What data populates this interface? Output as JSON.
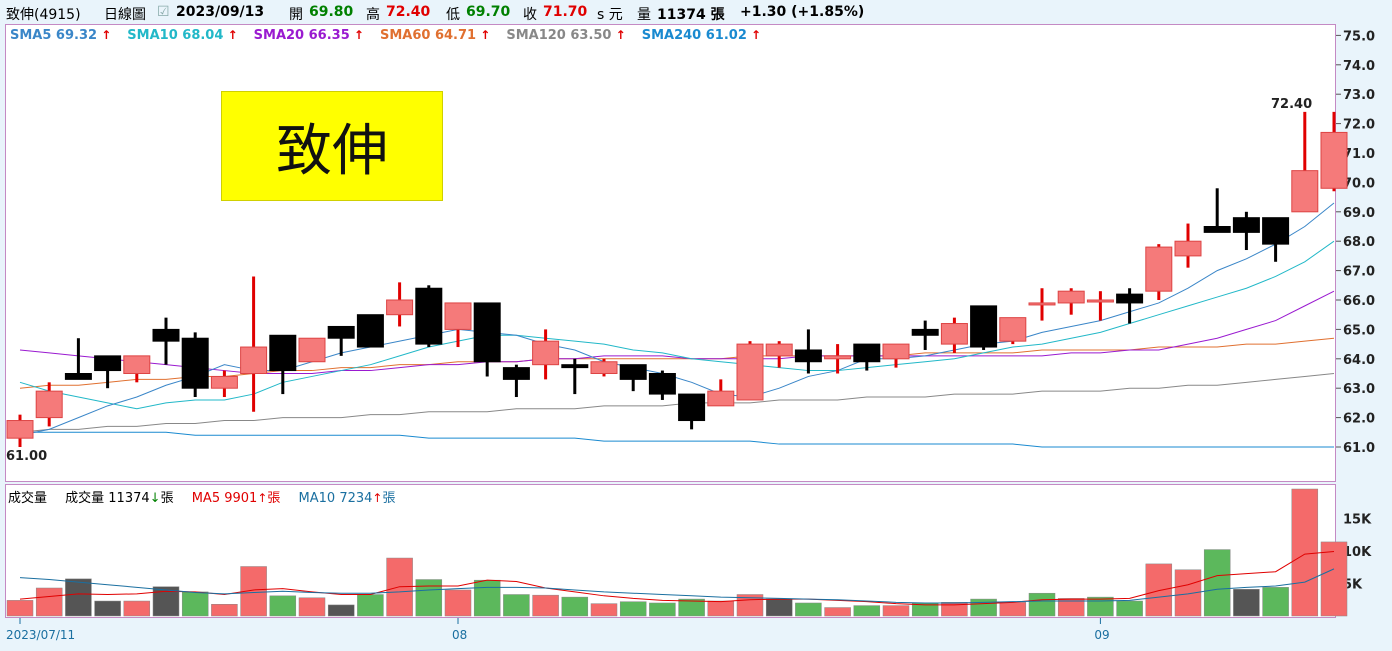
{
  "header": {
    "stock": "致伸(4915)",
    "period": "日線圖",
    "date": "2023/09/13",
    "open_label": "開",
    "open": "69.80",
    "high_label": "高",
    "high": "72.40",
    "low_label": "低",
    "low": "69.70",
    "close_label": "收",
    "close": "71.70",
    "unit_label": "s 元",
    "volume_label": "量",
    "volume": "11374 張",
    "change": "+1.30 (+1.85%)"
  },
  "stock_name_box": "致伸",
  "sma_legend": [
    {
      "label": "SMA5 69.32",
      "color": "#3a86c8"
    },
    {
      "label": "SMA10 68.04",
      "color": "#22b8c8"
    },
    {
      "label": "SMA20 66.35",
      "color": "#9a1ad0"
    },
    {
      "label": "SMA60 64.71",
      "color": "#e07030"
    },
    {
      "label": "SMA120 63.50",
      "color": "#888888"
    },
    {
      "label": "SMA240 61.02",
      "color": "#1a8ad0"
    }
  ],
  "volume_legend": {
    "title": "成交量",
    "vol": "成交量 11374",
    "vol_unit": "張",
    "ma5": "MA5 9901",
    "ma5_unit": "張",
    "ma10": "MA10 7234",
    "ma10_unit": "張"
  },
  "annotations": {
    "high": "72.40",
    "low": "61.00"
  },
  "colors": {
    "up": "#f57a7a",
    "down": "#000000",
    "vol_up": "#f46a6a",
    "vol_down": "#5cb85c",
    "vol_neutral": "#555555",
    "wick_up": "#e00000"
  },
  "chart_data": {
    "type": "candlestick",
    "ylim": [
      60.5,
      75.0
    ],
    "yticks": [
      "61.0",
      "62.0",
      "63.0",
      "64.0",
      "65.0",
      "66.0",
      "67.0",
      "68.0",
      "69.0",
      "70.0",
      "71.0",
      "72.0",
      "73.0",
      "74.0",
      "75.0"
    ],
    "vol_ylim": [
      0,
      19500
    ],
    "vol_ticks": [
      "5K",
      "10K",
      "15K"
    ],
    "date_labels": [
      {
        "label": "2023/07/11",
        "index": 0
      },
      {
        "label": "08",
        "index": 15
      },
      {
        "label": "09",
        "index": 37
      }
    ],
    "candles": [
      [
        61.3,
        61.9,
        61.0,
        62.1,
        2400,
        "u"
      ],
      [
        62.0,
        62.9,
        61.7,
        63.2,
        4300,
        "u"
      ],
      [
        63.5,
        63.3,
        63.3,
        64.7,
        5700,
        "d"
      ],
      [
        64.1,
        63.6,
        63.0,
        64.1,
        2300,
        "d"
      ],
      [
        63.5,
        64.1,
        63.2,
        64.1,
        2300,
        "u"
      ],
      [
        65.0,
        64.6,
        63.8,
        65.4,
        4500,
        "d"
      ],
      [
        64.7,
        63.0,
        62.7,
        64.9,
        3700,
        "g"
      ],
      [
        63.0,
        63.4,
        62.7,
        63.6,
        1800,
        "u"
      ],
      [
        63.5,
        64.4,
        62.2,
        66.8,
        7600,
        "u"
      ],
      [
        64.8,
        63.6,
        62.8,
        64.8,
        3100,
        "g"
      ],
      [
        63.9,
        64.7,
        63.9,
        64.7,
        2800,
        "u"
      ],
      [
        65.1,
        64.7,
        64.1,
        65.1,
        1700,
        "n"
      ],
      [
        65.5,
        64.4,
        64.4,
        65.5,
        3300,
        "g"
      ],
      [
        65.5,
        66.0,
        65.1,
        66.6,
        8900,
        "u"
      ],
      [
        66.4,
        64.5,
        64.4,
        66.5,
        5600,
        "g"
      ],
      [
        65.0,
        65.9,
        64.4,
        65.9,
        4000,
        "u"
      ],
      [
        65.9,
        63.9,
        63.4,
        65.9,
        5500,
        "g"
      ],
      [
        63.7,
        63.3,
        62.7,
        63.8,
        3300,
        "g"
      ],
      [
        63.8,
        64.6,
        63.3,
        65.0,
        3200,
        "u"
      ],
      [
        63.8,
        63.7,
        62.8,
        64.0,
        2900,
        "g"
      ],
      [
        63.5,
        63.9,
        63.4,
        64.0,
        1900,
        "u"
      ],
      [
        63.8,
        63.3,
        62.9,
        63.8,
        2200,
        "g"
      ],
      [
        63.5,
        62.8,
        62.6,
        63.6,
        2000,
        "g"
      ],
      [
        62.8,
        61.9,
        61.6,
        62.8,
        2600,
        "g"
      ],
      [
        62.4,
        62.9,
        62.4,
        63.3,
        2300,
        "u"
      ],
      [
        62.6,
        64.5,
        62.6,
        64.6,
        3300,
        "u"
      ],
      [
        64.1,
        64.5,
        63.7,
        64.6,
        2600,
        "n"
      ],
      [
        64.3,
        63.9,
        63.5,
        65.0,
        2000,
        "g"
      ],
      [
        64.0,
        64.1,
        63.5,
        64.5,
        1300,
        "u"
      ],
      [
        64.5,
        63.9,
        63.6,
        64.5,
        1600,
        "g"
      ],
      [
        64.0,
        64.5,
        63.7,
        64.5,
        1600,
        "u"
      ],
      [
        65.0,
        64.8,
        64.3,
        65.3,
        2000,
        "g"
      ],
      [
        64.5,
        65.2,
        64.2,
        65.4,
        2100,
        "u"
      ],
      [
        65.8,
        64.4,
        64.3,
        65.8,
        2600,
        "g"
      ],
      [
        64.6,
        65.4,
        64.5,
        65.4,
        2100,
        "u"
      ],
      [
        65.9,
        65.9,
        65.3,
        66.4,
        3500,
        "g"
      ],
      [
        65.9,
        66.3,
        65.5,
        66.4,
        2700,
        "u"
      ],
      [
        66.0,
        66.0,
        65.3,
        66.3,
        2900,
        "g"
      ],
      [
        66.2,
        65.9,
        65.2,
        66.4,
        2300,
        "g"
      ],
      [
        66.3,
        67.8,
        66.0,
        67.9,
        8000,
        "u"
      ],
      [
        67.5,
        68.0,
        67.1,
        68.6,
        7100,
        "u"
      ],
      [
        68.5,
        68.3,
        68.3,
        69.8,
        10200,
        "g"
      ],
      [
        68.8,
        68.3,
        67.7,
        69.0,
        4100,
        "n"
      ],
      [
        68.8,
        67.9,
        67.3,
        68.8,
        4400,
        "g"
      ],
      [
        69.0,
        70.4,
        69.0,
        72.4,
        19500,
        "u"
      ],
      [
        69.8,
        71.7,
        69.7,
        72.4,
        11374,
        "u"
      ]
    ],
    "sma5": [
      61.4,
      61.6,
      62.0,
      62.4,
      62.7,
      63.1,
      63.4,
      63.8,
      63.6,
      63.6,
      63.9,
      64.2,
      64.4,
      64.6,
      64.8,
      65.0,
      64.9,
      64.8,
      64.5,
      64.3,
      63.9,
      63.7,
      63.5,
      63.2,
      62.8,
      62.7,
      63.0,
      63.4,
      63.6,
      64.0,
      64.0,
      64.1,
      64.3,
      64.5,
      64.6,
      64.9,
      65.1,
      65.3,
      65.6,
      65.9,
      66.4,
      67.0,
      67.4,
      67.9,
      68.5,
      69.3
    ],
    "sma10": [
      63.2,
      62.9,
      62.7,
      62.5,
      62.3,
      62.5,
      62.6,
      62.6,
      62.8,
      63.2,
      63.4,
      63.6,
      63.8,
      64.1,
      64.4,
      64.6,
      64.8,
      64.8,
      64.7,
      64.6,
      64.5,
      64.3,
      64.2,
      64.0,
      63.9,
      63.8,
      63.7,
      63.6,
      63.6,
      63.7,
      63.8,
      63.9,
      64.0,
      64.2,
      64.4,
      64.5,
      64.7,
      64.9,
      65.2,
      65.5,
      65.8,
      66.1,
      66.4,
      66.8,
      67.3,
      68.0
    ],
    "sma20": [
      64.3,
      64.2,
      64.1,
      64.0,
      63.9,
      63.8,
      63.7,
      63.6,
      63.5,
      63.5,
      63.5,
      63.6,
      63.6,
      63.7,
      63.8,
      63.8,
      63.9,
      63.9,
      64.0,
      64.0,
      64.1,
      64.1,
      64.1,
      64.0,
      64.0,
      64.0,
      64.0,
      64.1,
      64.1,
      64.1,
      64.1,
      64.1,
      64.1,
      64.1,
      64.1,
      64.1,
      64.2,
      64.2,
      64.3,
      64.3,
      64.5,
      64.7,
      65.0,
      65.3,
      65.8,
      66.3
    ],
    "sma60": [
      63.0,
      63.1,
      63.1,
      63.2,
      63.3,
      63.3,
      63.4,
      63.4,
      63.5,
      63.6,
      63.6,
      63.7,
      63.7,
      63.8,
      63.8,
      63.9,
      63.9,
      63.9,
      64.0,
      64.0,
      64.0,
      64.0,
      64.0,
      64.0,
      64.0,
      64.1,
      64.1,
      64.1,
      64.1,
      64.1,
      64.1,
      64.2,
      64.2,
      64.2,
      64.2,
      64.3,
      64.3,
      64.3,
      64.3,
      64.4,
      64.4,
      64.4,
      64.5,
      64.5,
      64.6,
      64.7
    ],
    "sma120": [
      61.5,
      61.6,
      61.6,
      61.7,
      61.7,
      61.8,
      61.8,
      61.9,
      61.9,
      62.0,
      62.0,
      62.0,
      62.1,
      62.1,
      62.2,
      62.2,
      62.2,
      62.3,
      62.3,
      62.3,
      62.4,
      62.4,
      62.4,
      62.5,
      62.5,
      62.5,
      62.6,
      62.6,
      62.6,
      62.7,
      62.7,
      62.7,
      62.8,
      62.8,
      62.8,
      62.9,
      62.9,
      62.9,
      63.0,
      63.0,
      63.1,
      63.1,
      63.2,
      63.3,
      63.4,
      63.5
    ],
    "sma240": [
      61.5,
      61.5,
      61.5,
      61.5,
      61.5,
      61.5,
      61.4,
      61.4,
      61.4,
      61.4,
      61.4,
      61.4,
      61.4,
      61.4,
      61.3,
      61.3,
      61.3,
      61.3,
      61.3,
      61.3,
      61.2,
      61.2,
      61.2,
      61.2,
      61.2,
      61.2,
      61.1,
      61.1,
      61.1,
      61.1,
      61.1,
      61.1,
      61.1,
      61.1,
      61.1,
      61.0,
      61.0,
      61.0,
      61.0,
      61.0,
      61.0,
      61.0,
      61.0,
      61.0,
      61.0,
      61.0
    ],
    "vol_ma5": [
      2600,
      3000,
      3400,
      3300,
      3400,
      3800,
      3700,
      3300,
      4000,
      4200,
      3700,
      3300,
      3300,
      4500,
      4600,
      4600,
      5500,
      5300,
      4300,
      3700,
      3100,
      2700,
      2400,
      2300,
      2200,
      2500,
      2600,
      2600,
      2400,
      2200,
      1900,
      1700,
      1700,
      1900,
      2100,
      2500,
      2600,
      2600,
      2700,
      3900,
      4800,
      6200,
      6500,
      6800,
      9500,
      9901
    ],
    "vol_ma10": [
      5900,
      5600,
      5200,
      4800,
      4400,
      4000,
      3600,
      3400,
      3600,
      3800,
      3600,
      3500,
      3500,
      3700,
      4000,
      4200,
      4400,
      4400,
      4300,
      4000,
      3700,
      3500,
      3300,
      3100,
      2900,
      2800,
      2700,
      2600,
      2500,
      2300,
      2100,
      2000,
      2000,
      2100,
      2200,
      2300,
      2300,
      2300,
      2400,
      2900,
      3400,
      4100,
      4400,
      4600,
      5200,
      7234
    ]
  }
}
